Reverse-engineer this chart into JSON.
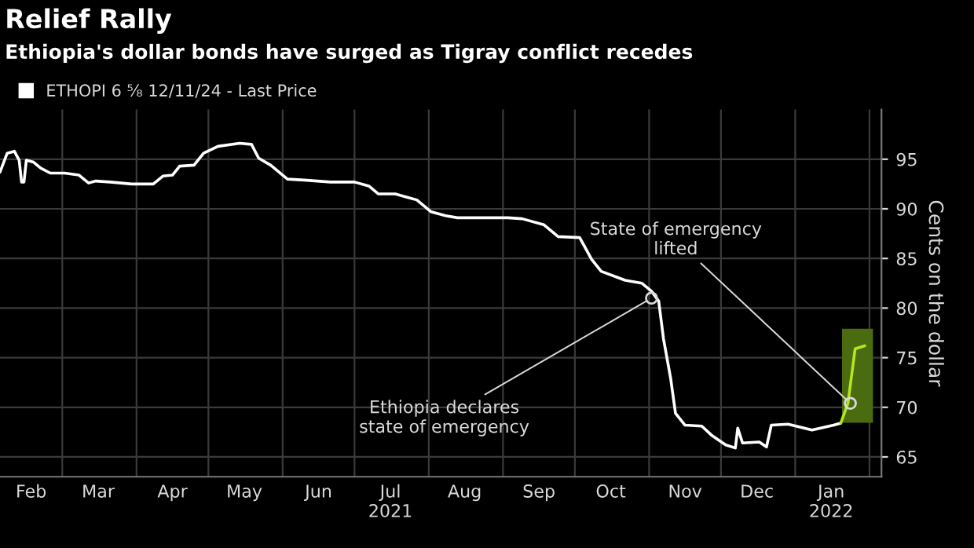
{
  "chart_data": {
    "type": "line",
    "title": "Relief Rally",
    "subtitle": "Ethiopia's dollar bonds have surged as Tigray conflict recedes",
    "ylabel": "Cents on the dollar",
    "series": [
      {
        "name": "ETHOPI 6 ⅝ 12/11/24 - Last Price",
        "color": "#ffffff",
        "x": [
          "2021-02-03",
          "2021-02-06",
          "2021-02-09",
          "2021-02-11",
          "2021-02-12",
          "2021-02-13",
          "2021-02-14",
          "2021-02-17",
          "2021-02-20",
          "2021-02-24",
          "2021-03-02",
          "2021-03-08",
          "2021-03-12",
          "2021-03-15",
          "2021-03-21",
          "2021-03-30",
          "2021-04-08",
          "2021-04-12",
          "2021-04-16",
          "2021-04-19",
          "2021-04-25",
          "2021-04-29",
          "2021-05-05",
          "2021-05-14",
          "2021-05-19",
          "2021-05-22",
          "2021-05-27",
          "2021-06-03",
          "2021-06-10",
          "2021-06-21",
          "2021-07-01",
          "2021-07-07",
          "2021-07-11",
          "2021-07-18",
          "2021-07-27",
          "2021-08-02",
          "2021-08-08",
          "2021-08-13",
          "2021-08-19",
          "2021-09-03",
          "2021-09-09",
          "2021-09-18",
          "2021-09-24",
          "2021-10-03",
          "2021-10-08",
          "2021-10-12",
          "2021-10-22",
          "2021-10-29",
          "2021-11-02",
          "2021-11-05",
          "2021-11-07",
          "2021-11-10",
          "2021-11-12",
          "2021-11-16",
          "2021-11-23",
          "2021-11-27",
          "2021-12-03",
          "2021-12-07",
          "2021-12-08",
          "2021-12-10",
          "2021-12-17",
          "2021-12-20",
          "2021-12-22",
          "2021-12-29",
          "2022-01-08",
          "2022-01-17",
          "2022-01-20"
        ],
        "values": [
          93.7,
          95.6,
          95.8,
          94.9,
          92.7,
          92.7,
          94.9,
          94.7,
          94.1,
          93.6,
          93.6,
          93.4,
          92.6,
          92.8,
          92.7,
          92.5,
          92.5,
          93.3,
          93.4,
          94.3,
          94.4,
          95.6,
          96.3,
          96.6,
          96.5,
          95.1,
          94.4,
          93.0,
          92.9,
          92.7,
          92.7,
          92.3,
          91.5,
          91.5,
          90.9,
          89.7,
          89.3,
          89.1,
          89.1,
          89.1,
          89.0,
          88.4,
          87.2,
          87.1,
          84.9,
          83.7,
          82.8,
          82.5,
          81.7,
          80.7,
          76.9,
          72.9,
          69.4,
          68.2,
          68.1,
          67.2,
          66.2,
          65.9,
          67.9,
          66.4,
          66.5,
          66.0,
          68.2,
          68.3,
          67.7,
          68.2,
          68.4
        ]
      },
      {
        "color": "#b5e61d",
        "x": [
          "2022-01-20",
          "2022-01-23",
          "2022-01-26",
          "2022-01-30"
        ],
        "values": [
          68.4,
          70.4,
          75.9,
          76.2
        ]
      }
    ],
    "xlim": [
      "2021-02-03",
      "2022-02-06"
    ],
    "xticks": [
      {
        "value": "2021-03-01",
        "label": null
      },
      {
        "value": "2021-04-01",
        "label": null
      },
      {
        "value": "2021-05-01",
        "label": null
      },
      {
        "value": "2021-06-01",
        "label": null
      },
      {
        "value": "2021-07-01",
        "label": null
      },
      {
        "value": "2021-08-01",
        "label": null
      },
      {
        "value": "2021-09-01",
        "label": null
      },
      {
        "value": "2021-10-01",
        "label": null
      },
      {
        "value": "2021-11-01",
        "label": null
      },
      {
        "value": "2021-12-01",
        "label": null
      },
      {
        "value": "2022-01-01",
        "label": null
      },
      {
        "value": "2022-02-01",
        "label": null
      },
      {
        "value": "2021-02-16",
        "label": "Feb"
      },
      {
        "value": "2021-03-16",
        "label": "Mar"
      },
      {
        "value": "2021-04-16",
        "label": "Apr"
      },
      {
        "value": "2021-05-16",
        "label": "May"
      },
      {
        "value": "2021-06-16",
        "label": "Jun"
      },
      {
        "value": "2021-07-16",
        "label": "Jul\n2021"
      },
      {
        "value": "2021-08-16",
        "label": "Aug"
      },
      {
        "value": "2021-09-16",
        "label": "Sep"
      },
      {
        "value": "2021-10-16",
        "label": "Oct"
      },
      {
        "value": "2021-11-16",
        "label": "Nov"
      },
      {
        "value": "2021-12-16",
        "label": "Dec"
      },
      {
        "value": "2022-01-16",
        "label": "Jan\n2022"
      }
    ],
    "ylim": [
      63,
      100
    ],
    "yticks": [
      65,
      70,
      75,
      80,
      85,
      90,
      95
    ],
    "grid": true,
    "legend": "top left",
    "line_style": "solid",
    "bands": [
      {
        "axis": "x",
        "from": "2022-01-21",
        "to": "2022-02-02",
        "color": "#4a6b10"
      }
    ],
    "annotations": [
      {
        "text": "Ethiopia declares\nstate of emergency",
        "x": "2021-11-02",
        "y": 81.0
      },
      {
        "text": "State of emergency\nlifted",
        "x": "2022-01-24",
        "y": 70.4
      }
    ]
  }
}
